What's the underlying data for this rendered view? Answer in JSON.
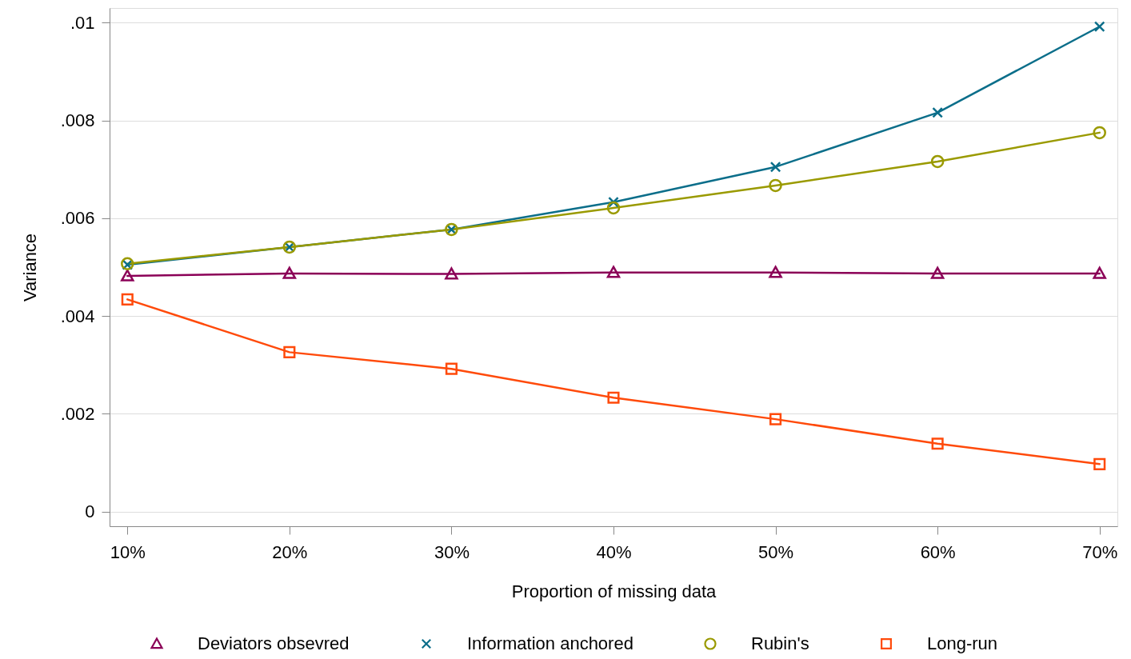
{
  "chart_data": {
    "type": "line",
    "categories": [
      "10%",
      "20%",
      "30%",
      "40%",
      "50%",
      "60%",
      "70%"
    ],
    "series": [
      {
        "name": "Deviators obsevred",
        "color": "#8b0057",
        "marker": "triangle",
        "values": [
          0.00482,
          0.00487,
          0.00486,
          0.00489,
          0.00489,
          0.00487,
          0.00487
        ]
      },
      {
        "name": "Information anchored",
        "color": "#0b6e8a",
        "marker": "cross",
        "values": [
          0.00505,
          0.00541,
          0.00577,
          0.00633,
          0.00705,
          0.00816,
          0.00992
        ]
      },
      {
        "name": "Rubin's",
        "color": "#9a9a00",
        "marker": "circle",
        "values": [
          0.00507,
          0.00541,
          0.00577,
          0.00621,
          0.00667,
          0.00716,
          0.00775
        ]
      },
      {
        "name": "Long-run",
        "color": "#ff4a0a",
        "marker": "square",
        "values": [
          0.00434,
          0.00326,
          0.00292,
          0.00233,
          0.00189,
          0.00139,
          0.00097
        ]
      }
    ],
    "xlabel": "Proportion of missing data",
    "ylabel": "Variance",
    "ylim": [
      -0.0003,
      0.0103
    ],
    "yticks": [
      {
        "value": 0,
        "label": "0"
      },
      {
        "value": 0.002,
        "label": ".002"
      },
      {
        "value": 0.004,
        "label": ".004"
      },
      {
        "value": 0.006,
        "label": ".006"
      },
      {
        "value": 0.008,
        "label": ".008"
      },
      {
        "value": 0.01,
        "label": ".01"
      }
    ],
    "grid": "y",
    "legend": "bottom",
    "line_style": "solid"
  }
}
